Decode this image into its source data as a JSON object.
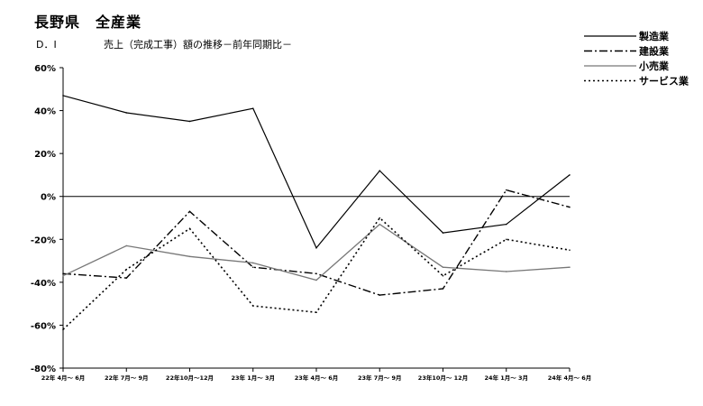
{
  "header": {
    "title": "長野県　全産業",
    "di_label": "D．I",
    "subtitle": "売上（完成工事）額の推移－前年同期比－"
  },
  "chart_data": {
    "type": "line",
    "title": "売上（完成工事）額の推移－前年同期比－",
    "ylabel": "D．I",
    "xlabel": "",
    "ylim": [
      -80,
      60
    ],
    "yticks": [
      60,
      40,
      20,
      0,
      -20,
      -40,
      -60,
      -80
    ],
    "ytick_labels": [
      "60%",
      "40%",
      "20%",
      "0%",
      "-20%",
      "-40%",
      "-60%",
      "-80%"
    ],
    "categories": [
      "22年 4月～ 6月",
      "22年 7月～ 9月",
      "22年10月～12月",
      "23年 1月～ 3月",
      "23年 4月～ 6月",
      "23年 7月～ 9月",
      "23年10月～ 12月",
      "24年 1月～ 3月",
      "24年 4月～ 6月"
    ],
    "grid": false,
    "zero_line": true,
    "legend_position": "top-right",
    "series": [
      {
        "name": "製造業",
        "style": "solid",
        "color": "#000000",
        "values": [
          47,
          39,
          35,
          41,
          -24,
          12,
          -17,
          -13,
          10
        ]
      },
      {
        "name": "建設業",
        "style": "dashdot",
        "color": "#000000",
        "values": [
          -36,
          -38,
          -7,
          -33,
          -36,
          -46,
          -43,
          3,
          -5
        ]
      },
      {
        "name": "小売業",
        "style": "double",
        "color": "#777777",
        "values": [
          -37,
          -23,
          -28,
          -31,
          -39,
          -13,
          -33,
          -35,
          -33
        ]
      },
      {
        "name": "サービス業",
        "style": "dotted",
        "color": "#000000",
        "values": [
          -62,
          -34,
          -15,
          -51,
          -54,
          -10,
          -37,
          -20,
          -25
        ]
      }
    ]
  }
}
